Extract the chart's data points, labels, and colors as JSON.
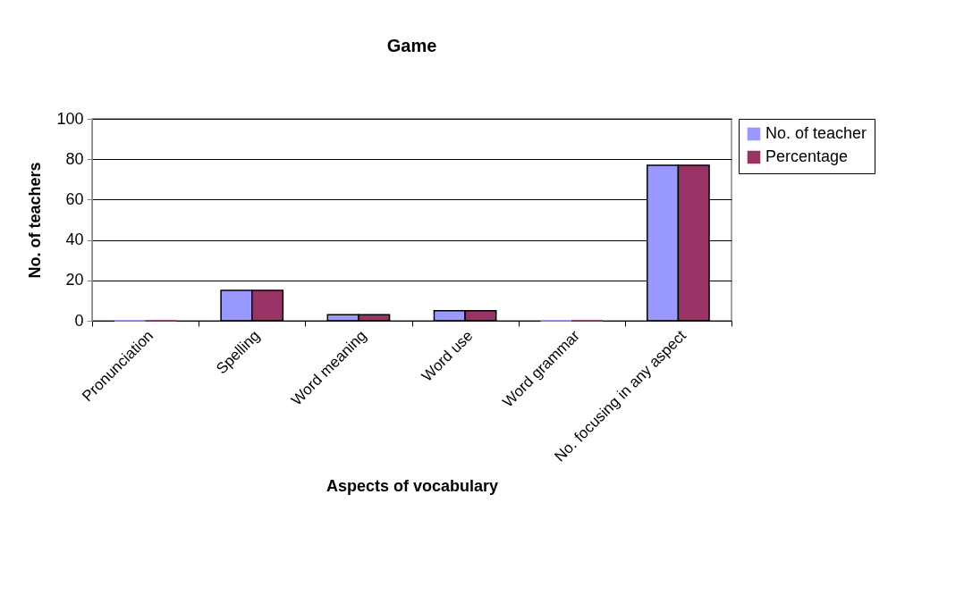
{
  "chart_data": {
    "type": "bar",
    "title": "Game",
    "xlabel": "Aspects of vocabulary",
    "ylabel": "No. of teachers",
    "categories": [
      "Pronunciation",
      "Spelling",
      "Word meaning",
      "Word use",
      "Word grammar",
      "No. focusing in any aspect"
    ],
    "series": [
      {
        "name": "No. of teacher",
        "color": "#9999ff",
        "values": [
          0,
          15,
          3,
          5,
          0,
          77
        ]
      },
      {
        "name": "Percentage",
        "color": "#993366",
        "values": [
          0,
          15,
          3,
          5,
          0,
          77
        ]
      }
    ],
    "ylim": [
      0,
      100
    ],
    "yticks": [
      0,
      20,
      40,
      60,
      80,
      100
    ],
    "grid": "y",
    "legend": "right"
  }
}
